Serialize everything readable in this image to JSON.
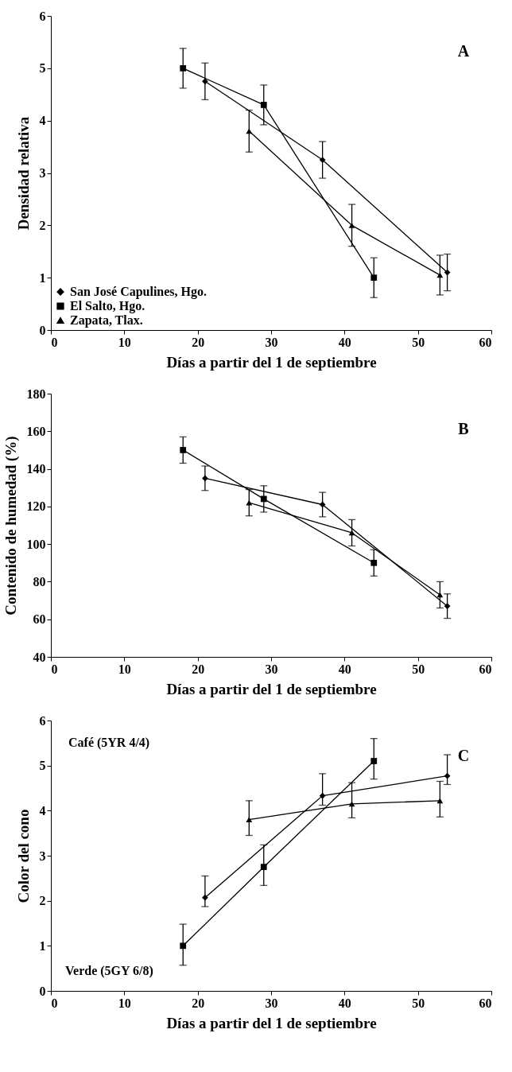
{
  "chart_data": [
    {
      "type": "line",
      "xlabel": "Días a partir del 1 de septiembre",
      "ylabel": "Densidad relativa",
      "xlim": [
        0,
        60
      ],
      "xticks": [
        0,
        10,
        20,
        30,
        40,
        50,
        60
      ],
      "ylim": [
        0,
        6
      ],
      "yticks": [
        0,
        1,
        2,
        3,
        4,
        5,
        6
      ],
      "legend": "bottom left",
      "annotations": [
        "A"
      ],
      "series": [
        {
          "name": "San José Capulines, Hgo.",
          "color": "#000000",
          "marker": "diamond",
          "x": [
            21,
            37,
            54
          ],
          "values": [
            4.75,
            3.25,
            1.1
          ],
          "errors": [
            0.35,
            0.35,
            0.35
          ]
        },
        {
          "name": "El Salto, Hgo.",
          "color": "#000000",
          "marker": "square",
          "x": [
            18,
            29,
            44
          ],
          "values": [
            5.0,
            4.3,
            1.0
          ],
          "errors": [
            0.38,
            0.38,
            0.38
          ]
        },
        {
          "name": "Zapata, Tlax.",
          "color": "#000000",
          "marker": "triangle",
          "x": [
            27,
            41,
            53
          ],
          "values": [
            3.8,
            2.0,
            1.05
          ],
          "errors": [
            0.4,
            0.4,
            0.38
          ]
        }
      ]
    },
    {
      "type": "line",
      "xlabel": "Días a partir del 1 de septiembre",
      "ylabel": "Contenido de humedad  (%)",
      "xlim": [
        0,
        60
      ],
      "xticks": [
        0,
        10,
        20,
        30,
        40,
        50,
        60
      ],
      "ylim": [
        40,
        180
      ],
      "yticks": [
        40,
        60,
        80,
        100,
        120,
        140,
        160,
        180
      ],
      "annotations": [
        "B"
      ],
      "series": [
        {
          "color": "#000000",
          "marker": "diamond",
          "x": [
            21,
            37,
            54
          ],
          "values": [
            135,
            121,
            67
          ],
          "errors": [
            6.5,
            6.5,
            6.5
          ]
        },
        {
          "color": "#000000",
          "marker": "square",
          "x": [
            18,
            29,
            44
          ],
          "values": [
            150,
            124,
            90
          ],
          "errors": [
            7,
            7,
            7
          ]
        },
        {
          "color": "#000000",
          "marker": "triangle",
          "x": [
            27,
            41,
            53
          ],
          "values": [
            122,
            106,
            73
          ],
          "errors": [
            7,
            7,
            7
          ]
        }
      ]
    },
    {
      "type": "line",
      "xlabel": "Días a partir del 1 de septiembre",
      "ylabel": "Color del cono",
      "xlim": [
        0,
        60
      ],
      "xticks": [
        0,
        10,
        20,
        30,
        40,
        50,
        60
      ],
      "ylim": [
        0,
        6
      ],
      "yticks": [
        0,
        1,
        2,
        3,
        4,
        5,
        6
      ],
      "annotations": [
        "Café (5YR 4/4)",
        "Verde (5GY 6/8)",
        "C"
      ],
      "series": [
        {
          "color": "#000000",
          "marker": "diamond",
          "x": [
            21,
            37,
            54
          ],
          "values": [
            2.07,
            4.33,
            4.77
          ],
          "errors": [
            [
              1.87,
              2.55
            ],
            [
              4.12,
              4.82
            ],
            [
              4.58,
              5.24
            ]
          ]
        },
        {
          "color": "#000000",
          "marker": "square",
          "x": [
            18,
            29,
            44
          ],
          "values": [
            1.0,
            2.75,
            5.1
          ],
          "errors": [
            [
              0.57,
              1.48
            ],
            [
              2.34,
              3.24
            ],
            [
              4.7,
              5.6
            ]
          ]
        },
        {
          "color": "#000000",
          "marker": "triangle",
          "x": [
            27,
            41,
            53
          ],
          "values": [
            3.8,
            4.15,
            4.22
          ],
          "errors": [
            [
              3.45,
              4.22
            ],
            [
              3.84,
              4.62
            ],
            [
              3.86,
              4.65
            ]
          ]
        }
      ]
    }
  ]
}
